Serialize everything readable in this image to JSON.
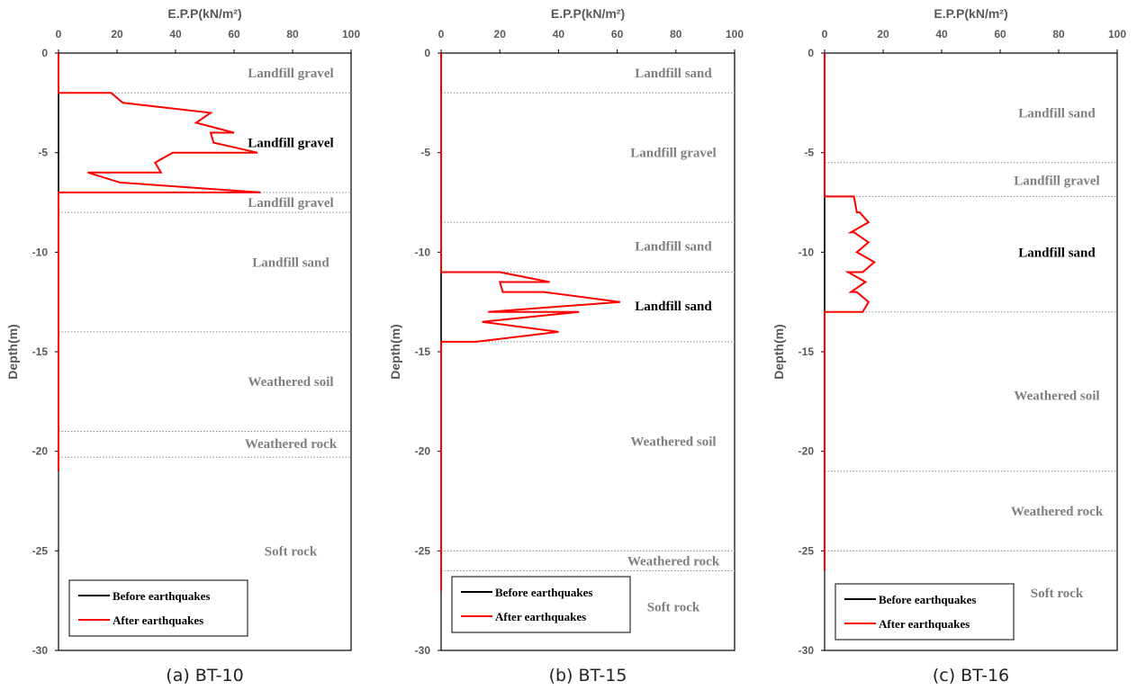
{
  "chart_data": [
    {
      "type": "line",
      "caption": "(a) BT-10",
      "xlabel": "E.P.P(kN/m²)",
      "ylabel": "Depth(m)",
      "xlim": [
        0,
        100
      ],
      "ylim": [
        -30,
        0
      ],
      "xticks": [
        "0",
        "20",
        "40",
        "60",
        "80",
        "100"
      ],
      "yticks": [
        "0",
        "-5",
        "-10",
        "-15",
        "-20",
        "-25",
        "-30"
      ],
      "legend_position": "bottom-left",
      "series": [
        {
          "name": "Before earthquakes",
          "color": "#000000",
          "x": [
            0,
            0
          ],
          "y": [
            0,
            -21
          ]
        },
        {
          "name": "After earthquakes",
          "color": "#ff0000",
          "x": [
            0,
            0,
            18,
            22,
            52,
            47,
            60,
            52,
            53,
            68,
            39,
            33,
            35,
            10,
            21,
            69,
            0,
            0
          ],
          "y": [
            0,
            -2,
            -2,
            -2.5,
            -3,
            -3.5,
            -4,
            -4,
            -4.5,
            -5,
            -5,
            -5.5,
            -6,
            -6,
            -6.5,
            -7,
            -7,
            -21
          ]
        }
      ],
      "boundaries": [
        -2,
        -7,
        -8,
        -14,
        -19,
        -20.3
      ],
      "layers": [
        {
          "label": "Landfill gravel",
          "y": -1,
          "highlight": false
        },
        {
          "label": "Landfill gravel",
          "y": -4.5,
          "highlight": true
        },
        {
          "label": "Landfill gravel",
          "y": -7.5,
          "highlight": false
        },
        {
          "label": "Landfill sand",
          "y": -10.5,
          "highlight": false
        },
        {
          "label": "Weathered soil",
          "y": -16.5,
          "highlight": false
        },
        {
          "label": "Weathered rock",
          "y": -19.6,
          "highlight": false
        },
        {
          "label": "Soft rock",
          "y": -25,
          "highlight": false
        }
      ]
    },
    {
      "type": "line",
      "caption": "(b) BT-15",
      "xlabel": "E.P.P(kN/m²)",
      "ylabel": "Depth(m)",
      "xlim": [
        0,
        100
      ],
      "ylim": [
        -30,
        0
      ],
      "xticks": [
        "0",
        "20",
        "40",
        "60",
        "80",
        "100"
      ],
      "yticks": [
        "0",
        "-5",
        "-10",
        "-15",
        "-20",
        "-25",
        "-30"
      ],
      "legend_position": "bottom-left",
      "series": [
        {
          "name": "Before earthquakes",
          "color": "#000000",
          "x": [
            0,
            0
          ],
          "y": [
            0,
            -27
          ]
        },
        {
          "name": "After earthquakes",
          "color": "#ff0000",
          "x": [
            0,
            0,
            20,
            37,
            20,
            21,
            35,
            61,
            16,
            47,
            14,
            40,
            12,
            0,
            0
          ],
          "y": [
            0,
            -11,
            -11,
            -11.5,
            -11.5,
            -12,
            -12,
            -12.5,
            -13,
            -13,
            -13.5,
            -14,
            -14.5,
            -14.5,
            -27
          ]
        }
      ],
      "boundaries": [
        -2,
        -8.5,
        -11,
        -14.5,
        -25,
        -26
      ],
      "layers": [
        {
          "label": "Landfill sand",
          "y": -1,
          "highlight": false
        },
        {
          "label": "Landfill gravel",
          "y": -5,
          "highlight": false
        },
        {
          "label": "Landfill sand",
          "y": -9.7,
          "highlight": false
        },
        {
          "label": "Landfill sand",
          "y": -12.7,
          "highlight": true
        },
        {
          "label": "Weathered soil",
          "y": -19.5,
          "highlight": false
        },
        {
          "label": "Weathered rock",
          "y": -25.5,
          "highlight": false
        },
        {
          "label": "Soft rock",
          "y": -27.8,
          "highlight": false
        }
      ]
    },
    {
      "type": "line",
      "caption": "(c) BT-16",
      "xlabel": "E.P.P(kN/m²)",
      "ylabel": "Depth(m)",
      "xlim": [
        0,
        100
      ],
      "ylim": [
        -30,
        0
      ],
      "xticks": [
        "0",
        "20",
        "40",
        "60",
        "80",
        "100"
      ],
      "yticks": [
        "0",
        "-5",
        "-10",
        "-15",
        "-20",
        "-25",
        "-30"
      ],
      "legend_position": "bottom-left",
      "series": [
        {
          "name": "Before earthquakes",
          "color": "#000000",
          "x": [
            0,
            0
          ],
          "y": [
            0,
            -26
          ]
        },
        {
          "name": "After earthquakes",
          "color": "#ff0000",
          "x": [
            0,
            0,
            10,
            11,
            12,
            15,
            9,
            10,
            15,
            11,
            17,
            13,
            8,
            14,
            9,
            11,
            15,
            13,
            0,
            0
          ],
          "y": [
            0,
            -7.2,
            -7.2,
            -8,
            -8,
            -8.5,
            -9,
            -9,
            -9.5,
            -10,
            -10.5,
            -11,
            -11,
            -11.5,
            -12,
            -12,
            -12.5,
            -13,
            -13,
            -26
          ]
        }
      ],
      "boundaries": [
        -5.5,
        -7.2,
        -13,
        -21,
        -25
      ],
      "layers": [
        {
          "label": "Landfill sand",
          "y": -3,
          "highlight": false
        },
        {
          "label": "Landfill gravel",
          "y": -6.4,
          "highlight": false
        },
        {
          "label": "Landfill sand",
          "y": -10,
          "highlight": true
        },
        {
          "label": "Weathered soil",
          "y": -17.2,
          "highlight": false
        },
        {
          "label": "Weathered rock",
          "y": -23,
          "highlight": false
        },
        {
          "label": "Soft rock",
          "y": -27.1,
          "highlight": false
        }
      ]
    }
  ]
}
